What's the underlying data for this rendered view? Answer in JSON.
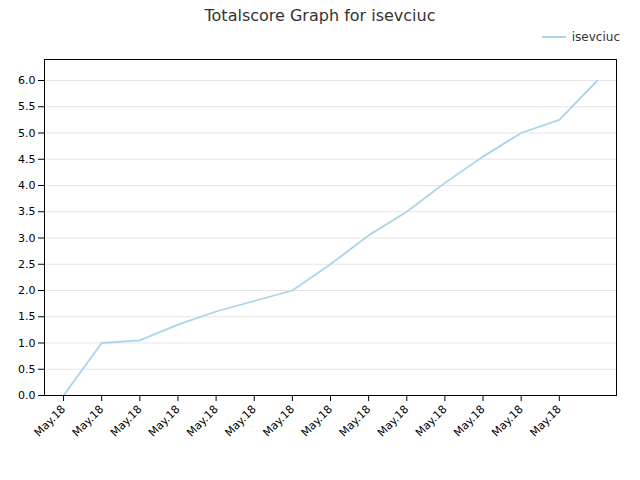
{
  "chart_data": {
    "type": "line",
    "title": "Totalscore Graph for isevciuc",
    "x": [
      0,
      1,
      2,
      3,
      4,
      5,
      6,
      7,
      8,
      9,
      10,
      11,
      12,
      13,
      14
    ],
    "series": [
      {
        "name": "isevciuc",
        "color": "#aad4e8",
        "values": [
          0.0,
          1.0,
          1.05,
          1.35,
          1.6,
          1.8,
          2.0,
          2.5,
          3.05,
          3.5,
          4.05,
          4.55,
          5.0,
          5.25,
          6.0
        ]
      }
    ],
    "xlim": [
      -0.5,
      14.5
    ],
    "xticks": [
      {
        "value": 0,
        "label": "May.18"
      },
      {
        "value": 1,
        "label": "May.18"
      },
      {
        "value": 2,
        "label": "May.18"
      },
      {
        "value": 3,
        "label": "May.18"
      },
      {
        "value": 4,
        "label": "May.18"
      },
      {
        "value": 5,
        "label": "May.18"
      },
      {
        "value": 6,
        "label": "May.18"
      },
      {
        "value": 7,
        "label": "May.18"
      },
      {
        "value": 8,
        "label": "May.18"
      },
      {
        "value": 9,
        "label": "May.18"
      },
      {
        "value": 10,
        "label": "May.18"
      },
      {
        "value": 11,
        "label": "May.18"
      },
      {
        "value": 12,
        "label": "May.18"
      },
      {
        "value": 13,
        "label": "May.18"
      }
    ],
    "ylim": [
      0.0,
      6.4
    ],
    "yticks": [
      {
        "value": 0.0,
        "label": "0.0"
      },
      0.5,
      {
        "value": 1.0,
        "label": "1.0"
      },
      1.5,
      {
        "value": 2.0,
        "label": "2.0"
      },
      2.5,
      {
        "value": 3.0,
        "label": "3.0"
      },
      3.5,
      {
        "value": 4.0,
        "label": "4.0"
      },
      4.5,
      {
        "value": 5.0,
        "label": "5.0"
      },
      5.5,
      {
        "value": 6.0,
        "label": "6.0"
      }
    ],
    "grid": true,
    "legend": "upper right"
  }
}
